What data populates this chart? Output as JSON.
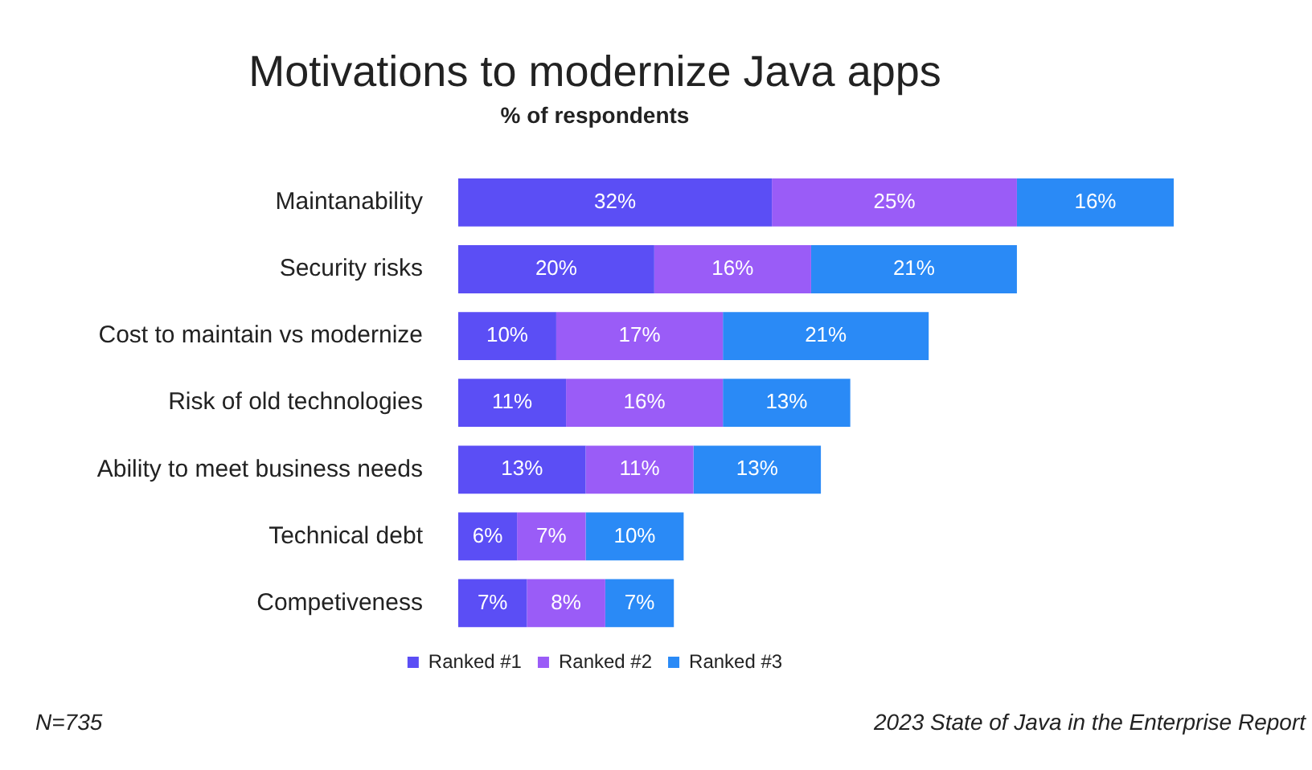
{
  "chart_data": {
    "type": "bar",
    "orientation": "horizontal",
    "stacked": true,
    "title": "Motivations to modernize Java apps",
    "subtitle": "% of respondents",
    "categories": [
      "Maintanability",
      "Security risks",
      "Cost to maintain vs modernize",
      "Risk of old technologies",
      "Ability to meet business needs",
      "Technical debt",
      "Competiveness"
    ],
    "series": [
      {
        "name": "Ranked #1",
        "color": "#5b4ef5",
        "values": [
          32,
          20,
          10,
          11,
          13,
          6,
          7
        ],
        "value_labels": [
          "32%",
          "20%",
          "10%",
          "11%",
          "13%",
          "6%",
          "7%"
        ]
      },
      {
        "name": "Ranked #2",
        "color": "#9a5cf7",
        "values": [
          25,
          16,
          17,
          16,
          11,
          7,
          8
        ],
        "value_labels": [
          "25%",
          "16%",
          "17%",
          "16%",
          "11%",
          "7%",
          "8%"
        ]
      },
      {
        "name": "Ranked #3",
        "color": "#2a8af6",
        "values": [
          16,
          21,
          21,
          13,
          13,
          10,
          7
        ],
        "value_labels": [
          "16%",
          "21%",
          "21%",
          "13%",
          "13%",
          "10%",
          "7%"
        ]
      }
    ],
    "legend": "bottom",
    "annotations": [
      "N=735",
      "2023 State of Java in the Enterprise Report"
    ]
  }
}
